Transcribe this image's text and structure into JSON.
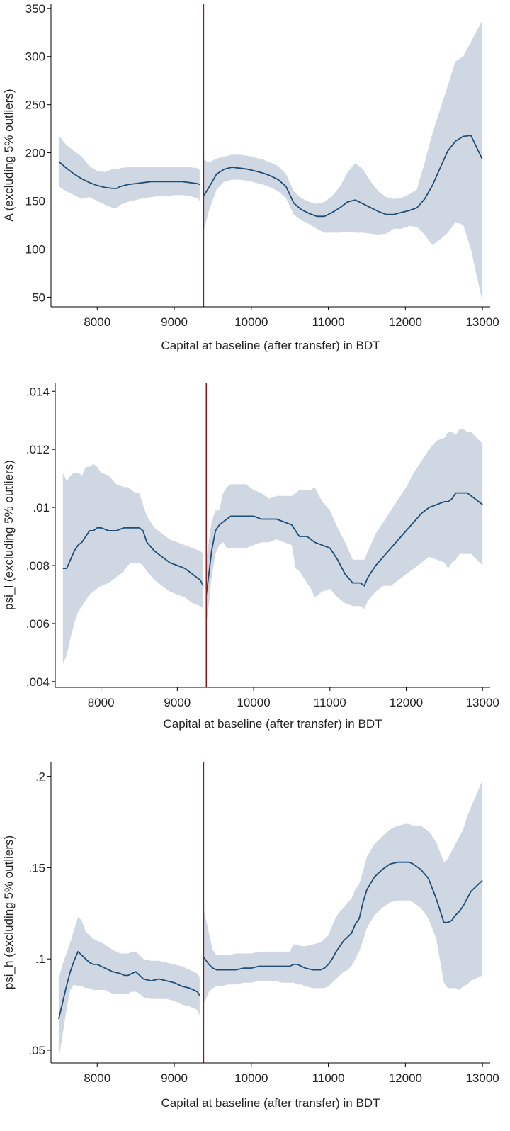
{
  "colors": {
    "line": "#1f4e79",
    "band": "#cfd8e2",
    "cutoff": "#8b1a1a",
    "axis": "#000000"
  },
  "chart_data": [
    {
      "type": "line",
      "title": "",
      "xlabel": "Capital at baseline (after transfer) in BDT",
      "ylabel": "A (excluding 5% outliers)",
      "xlim": [
        7400,
        13100
      ],
      "ylim": [
        40,
        355
      ],
      "xticks": [
        8000,
        9000,
        10000,
        11000,
        12000,
        13000
      ],
      "xtick_labels": [
        "8000",
        "9000",
        "10000",
        "11000",
        "12000",
        "13000"
      ],
      "yticks": [
        50,
        100,
        150,
        200,
        250,
        300,
        350
      ],
      "ytick_labels": [
        "50",
        "100",
        "150",
        "200",
        "250",
        "300",
        "350"
      ],
      "cutoff": 9380,
      "grid": false,
      "legend": "none",
      "segments": [
        {
          "x": [
            7500,
            7600,
            7700,
            7800,
            7900,
            8000,
            8100,
            8200,
            8250,
            8300,
            8400,
            8500,
            8600,
            8700,
            8800,
            8900,
            9000,
            9100,
            9200,
            9300,
            9330
          ],
          "y": [
            191,
            184,
            178,
            173,
            169,
            166,
            164,
            163,
            163,
            165,
            167,
            168,
            169,
            170,
            170,
            170,
            170,
            170,
            169,
            168,
            167
          ],
          "lower": [
            165,
            160,
            156,
            152,
            154,
            150,
            146,
            143,
            143,
            146,
            149,
            151,
            153,
            154,
            155,
            155,
            156,
            156,
            155,
            153,
            150
          ],
          "upper": [
            218,
            208,
            202,
            196,
            186,
            181,
            180,
            183,
            183,
            184,
            185,
            185,
            185,
            185,
            185,
            185,
            185,
            185,
            185,
            184,
            183
          ]
        },
        {
          "x": [
            9380,
            9450,
            9550,
            9650,
            9750,
            9850,
            9950,
            10050,
            10150,
            10250,
            10350,
            10450,
            10550,
            10650,
            10750,
            10850,
            10950,
            11050,
            11150,
            11250,
            11350,
            11450,
            11550,
            11650,
            11750,
            11850,
            11950,
            12050,
            12150,
            12250,
            12350,
            12450,
            12550,
            12650,
            12750,
            12850,
            13000
          ],
          "y": [
            155,
            164,
            178,
            183,
            185,
            184,
            183,
            181,
            179,
            176,
            172,
            165,
            148,
            141,
            137,
            134,
            134,
            138,
            143,
            149,
            151,
            147,
            143,
            139,
            136,
            136,
            138,
            140,
            143,
            152,
            166,
            184,
            202,
            212,
            217,
            218,
            193
          ],
          "lower": [
            118,
            140,
            162,
            170,
            172,
            172,
            171,
            169,
            167,
            164,
            160,
            153,
            136,
            130,
            126,
            121,
            117,
            117,
            117,
            118,
            117,
            117,
            116,
            115,
            116,
            121,
            121,
            124,
            123,
            115,
            104,
            110,
            117,
            128,
            125,
            100,
            45
          ],
          "upper": [
            193,
            190,
            194,
            196,
            198,
            198,
            197,
            195,
            193,
            190,
            186,
            178,
            160,
            153,
            149,
            147,
            149,
            155,
            165,
            180,
            189,
            183,
            170,
            160,
            154,
            152,
            153,
            157,
            162,
            190,
            220,
            245,
            270,
            295,
            300,
            315,
            338
          ]
        }
      ]
    },
    {
      "type": "line",
      "title": "",
      "xlabel": "Capital at baseline (after transfer) in BDT",
      "ylabel": "psi_l (excluding 5% outliers)",
      "xlim": [
        7400,
        13100
      ],
      "ylim": [
        0.0038,
        0.0143
      ],
      "xticks": [
        8000,
        9000,
        10000,
        11000,
        12000,
        13000
      ],
      "xtick_labels": [
        "8000",
        "9000",
        "10000",
        "11000",
        "12000",
        "13000"
      ],
      "yticks": [
        0.004,
        0.006,
        0.008,
        0.01,
        0.012,
        0.014
      ],
      "ytick_labels": [
        ".004",
        ".006",
        ".008",
        ".01",
        ".012",
        ".014"
      ],
      "cutoff": 9380,
      "grid": false,
      "legend": "none",
      "segments": [
        {
          "x": [
            7500,
            7550,
            7600,
            7650,
            7700,
            7750,
            7800,
            7850,
            7900,
            7950,
            8000,
            8100,
            8200,
            8300,
            8350,
            8400,
            8450,
            8500,
            8550,
            8600,
            8700,
            8800,
            8900,
            9000,
            9100,
            9200,
            9300,
            9340
          ],
          "y": [
            0.0079,
            0.0079,
            0.0082,
            0.0085,
            0.0087,
            0.0088,
            0.009,
            0.0092,
            0.0092,
            0.0093,
            0.0093,
            0.0092,
            0.0092,
            0.0093,
            0.0093,
            0.0093,
            0.0093,
            0.0093,
            0.0092,
            0.0088,
            0.0085,
            0.0083,
            0.0081,
            0.008,
            0.0079,
            0.0077,
            0.0075,
            0.0073
          ],
          "lower": [
            0.0046,
            0.0049,
            0.0055,
            0.006,
            0.0064,
            0.0066,
            0.0068,
            0.007,
            0.0071,
            0.0072,
            0.0073,
            0.0074,
            0.0076,
            0.0078,
            0.008,
            0.0081,
            0.0081,
            0.0081,
            0.008,
            0.0078,
            0.0075,
            0.0073,
            0.0071,
            0.007,
            0.0069,
            0.0067,
            0.0066,
            0.0065
          ],
          "upper": [
            0.0112,
            0.0109,
            0.0111,
            0.0112,
            0.0112,
            0.0111,
            0.0114,
            0.0114,
            0.0115,
            0.0114,
            0.0112,
            0.0111,
            0.0108,
            0.0107,
            0.0107,
            0.0106,
            0.0105,
            0.0105,
            0.0101,
            0.0097,
            0.0093,
            0.0091,
            0.0089,
            0.0088,
            0.0087,
            0.0086,
            0.0085,
            0.0084
          ]
        },
        {
          "x": [
            9380,
            9400,
            9450,
            9500,
            9550,
            9600,
            9650,
            9700,
            9800,
            9900,
            10000,
            10100,
            10200,
            10300,
            10400,
            10500,
            10550,
            10600,
            10650,
            10700,
            10750,
            10800,
            10900,
            11000,
            11100,
            11200,
            11300,
            11400,
            11450,
            11500,
            11600,
            11700,
            11800,
            11900,
            12000,
            12100,
            12200,
            12300,
            12400,
            12500,
            12550,
            12600,
            12650,
            12700,
            12750,
            12800,
            12850,
            13000
          ],
          "y": [
            0.007,
            0.0074,
            0.0085,
            0.0092,
            0.0094,
            0.0095,
            0.0096,
            0.0097,
            0.0097,
            0.0097,
            0.0097,
            0.0096,
            0.0096,
            0.0096,
            0.0095,
            0.0094,
            0.0092,
            0.009,
            0.009,
            0.009,
            0.0089,
            0.0088,
            0.0087,
            0.0086,
            0.0082,
            0.0077,
            0.0074,
            0.0074,
            0.0073,
            0.0076,
            0.008,
            0.0083,
            0.0086,
            0.0089,
            0.0092,
            0.0095,
            0.0098,
            0.01,
            0.0101,
            0.0102,
            0.0102,
            0.0103,
            0.0105,
            0.0105,
            0.0105,
            0.0105,
            0.0104,
            0.0101
          ],
          "lower": [
            0.0061,
            0.0063,
            0.0076,
            0.0084,
            0.0087,
            0.0088,
            0.0086,
            0.0086,
            0.0086,
            0.0086,
            0.0087,
            0.0088,
            0.0088,
            0.0089,
            0.0088,
            0.0087,
            0.0079,
            0.0078,
            0.0076,
            0.0074,
            0.0072,
            0.0069,
            0.0071,
            0.0072,
            0.0069,
            0.0067,
            0.0066,
            0.0066,
            0.0065,
            0.0068,
            0.0071,
            0.0073,
            0.0073,
            0.0075,
            0.0077,
            0.0079,
            0.0081,
            0.0083,
            0.0082,
            0.0081,
            0.0079,
            0.0081,
            0.0082,
            0.0084,
            0.0084,
            0.0084,
            0.0084,
            0.008
          ],
          "upper": [
            0.0082,
            0.0086,
            0.0095,
            0.0099,
            0.0099,
            0.0105,
            0.0107,
            0.0108,
            0.0108,
            0.0108,
            0.0106,
            0.0105,
            0.0103,
            0.0104,
            0.0104,
            0.0104,
            0.0105,
            0.0106,
            0.0106,
            0.0106,
            0.0106,
            0.0107,
            0.0102,
            0.0099,
            0.0093,
            0.0088,
            0.0082,
            0.0082,
            0.0082,
            0.0085,
            0.0091,
            0.0095,
            0.0099,
            0.0103,
            0.0107,
            0.0112,
            0.0116,
            0.012,
            0.0123,
            0.0124,
            0.0126,
            0.0126,
            0.0125,
            0.0127,
            0.0127,
            0.0126,
            0.0126,
            0.0122
          ]
        }
      ]
    },
    {
      "type": "line",
      "title": "",
      "xlabel": "Capital at baseline (after transfer) in BDT",
      "ylabel": "psi_h (excluding 5% outliers)",
      "xlim": [
        7400,
        13100
      ],
      "ylim": [
        0.043,
        0.208
      ],
      "xticks": [
        8000,
        9000,
        10000,
        11000,
        12000,
        13000
      ],
      "xtick_labels": [
        "8000",
        "9000",
        "10000",
        "11000",
        "12000",
        "13000"
      ],
      "yticks": [
        0.05,
        0.1,
        0.15,
        0.2
      ],
      "ytick_labels": [
        ".05",
        ".1",
        ".15",
        ".2"
      ],
      "cutoff": 9380,
      "grid": false,
      "legend": "none",
      "segments": [
        {
          "x": [
            7500,
            7550,
            7600,
            7650,
            7700,
            7750,
            7800,
            7850,
            7900,
            7950,
            8000,
            8050,
            8100,
            8200,
            8300,
            8350,
            8400,
            8450,
            8500,
            8550,
            8600,
            8700,
            8800,
            8900,
            9000,
            9100,
            9200,
            9300,
            9330
          ],
          "y": [
            0.067,
            0.076,
            0.085,
            0.093,
            0.099,
            0.104,
            0.102,
            0.1,
            0.098,
            0.097,
            0.097,
            0.096,
            0.095,
            0.093,
            0.092,
            0.091,
            0.091,
            0.092,
            0.093,
            0.091,
            0.089,
            0.088,
            0.089,
            0.088,
            0.087,
            0.085,
            0.084,
            0.082,
            0.08
          ],
          "lower": [
            0.045,
            0.058,
            0.072,
            0.083,
            0.086,
            0.085,
            0.085,
            0.084,
            0.084,
            0.083,
            0.083,
            0.083,
            0.083,
            0.081,
            0.081,
            0.081,
            0.081,
            0.082,
            0.082,
            0.081,
            0.079,
            0.078,
            0.078,
            0.078,
            0.077,
            0.075,
            0.074,
            0.072,
            0.069
          ],
          "upper": [
            0.089,
            0.097,
            0.103,
            0.109,
            0.116,
            0.123,
            0.121,
            0.115,
            0.113,
            0.111,
            0.11,
            0.109,
            0.108,
            0.105,
            0.103,
            0.103,
            0.103,
            0.104,
            0.104,
            0.102,
            0.1,
            0.099,
            0.099,
            0.098,
            0.097,
            0.096,
            0.094,
            0.092,
            0.09
          ]
        },
        {
          "x": [
            9380,
            9450,
            9500,
            9550,
            9600,
            9700,
            9800,
            9900,
            10000,
            10100,
            10200,
            10300,
            10400,
            10500,
            10550,
            10600,
            10650,
            10700,
            10800,
            10900,
            10950,
            11000,
            11050,
            11100,
            11150,
            11200,
            11250,
            11300,
            11350,
            11400,
            11450,
            11500,
            11600,
            11700,
            11800,
            11900,
            12000,
            12050,
            12100,
            12200,
            12300,
            12400,
            12500,
            12550,
            12600,
            12650,
            12700,
            12750,
            12800,
            12850,
            13000
          ],
          "y": [
            0.101,
            0.097,
            0.095,
            0.094,
            0.094,
            0.094,
            0.094,
            0.095,
            0.095,
            0.096,
            0.096,
            0.096,
            0.096,
            0.096,
            0.097,
            0.097,
            0.096,
            0.095,
            0.094,
            0.094,
            0.095,
            0.097,
            0.1,
            0.104,
            0.107,
            0.11,
            0.112,
            0.114,
            0.119,
            0.122,
            0.131,
            0.138,
            0.145,
            0.149,
            0.152,
            0.153,
            0.153,
            0.153,
            0.152,
            0.149,
            0.144,
            0.133,
            0.12,
            0.12,
            0.121,
            0.124,
            0.126,
            0.129,
            0.133,
            0.137,
            0.143
          ],
          "lower": [
            0.075,
            0.082,
            0.084,
            0.085,
            0.085,
            0.086,
            0.086,
            0.087,
            0.087,
            0.088,
            0.088,
            0.088,
            0.087,
            0.087,
            0.087,
            0.086,
            0.086,
            0.085,
            0.084,
            0.084,
            0.084,
            0.085,
            0.087,
            0.089,
            0.091,
            0.093,
            0.094,
            0.096,
            0.1,
            0.104,
            0.11,
            0.117,
            0.124,
            0.128,
            0.131,
            0.132,
            0.132,
            0.132,
            0.131,
            0.128,
            0.122,
            0.111,
            0.087,
            0.084,
            0.084,
            0.084,
            0.083,
            0.085,
            0.086,
            0.088,
            0.091
          ],
          "upper": [
            0.128,
            0.114,
            0.105,
            0.102,
            0.102,
            0.102,
            0.103,
            0.103,
            0.103,
            0.104,
            0.104,
            0.104,
            0.104,
            0.104,
            0.108,
            0.108,
            0.107,
            0.107,
            0.108,
            0.109,
            0.111,
            0.113,
            0.118,
            0.123,
            0.126,
            0.128,
            0.131,
            0.133,
            0.138,
            0.141,
            0.148,
            0.156,
            0.163,
            0.167,
            0.171,
            0.173,
            0.174,
            0.174,
            0.173,
            0.173,
            0.17,
            0.164,
            0.153,
            0.155,
            0.159,
            0.163,
            0.167,
            0.171,
            0.178,
            0.183,
            0.198
          ]
        }
      ]
    }
  ]
}
